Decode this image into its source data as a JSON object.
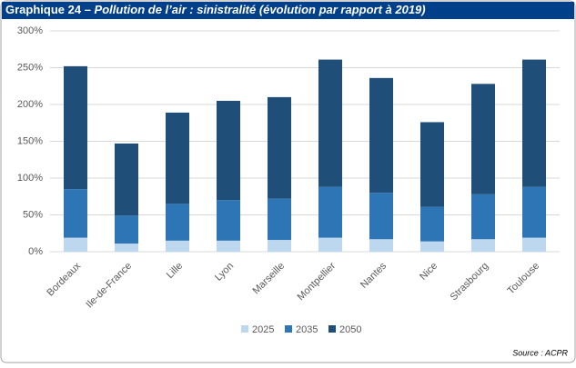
{
  "chart_data": {
    "type": "stacked_bar",
    "title_prefix": "Graphique 24 –",
    "title": "Pollution de l’air : sinistralité (évolution par rapport à 2019)",
    "source": "Source : ACPR",
    "categories": [
      "Bordeaux",
      "Ile-de-France",
      "Lille",
      "Lyon",
      "Marseille",
      "Montpellier",
      "Nantes",
      "Nice",
      "Strasbourg",
      "Toulouse"
    ],
    "series": [
      {
        "name": "2025",
        "color": "#bdd7ee",
        "values": [
          19,
          11,
          15,
          15,
          16,
          19,
          17,
          14,
          17,
          19
        ]
      },
      {
        "name": "2035",
        "color": "#2e75b6",
        "values": [
          66,
          38,
          50,
          55,
          56,
          69,
          63,
          47,
          61,
          69
        ]
      },
      {
        "name": "2050",
        "color": "#1f4e79",
        "values": [
          167,
          98,
          124,
          135,
          138,
          173,
          156,
          115,
          150,
          173
        ]
      }
    ],
    "ylim": [
      0,
      300
    ],
    "yticks": [
      {
        "value": 0,
        "label": "0%"
      },
      {
        "value": 50,
        "label": "50%"
      },
      {
        "value": 100,
        "label": "100%"
      },
      {
        "value": 150,
        "label": "150%"
      },
      {
        "value": 200,
        "label": "200%"
      },
      {
        "value": 250,
        "label": "250%"
      },
      {
        "value": 300,
        "label": "300%"
      }
    ],
    "grid": true,
    "legend": "bottom"
  }
}
